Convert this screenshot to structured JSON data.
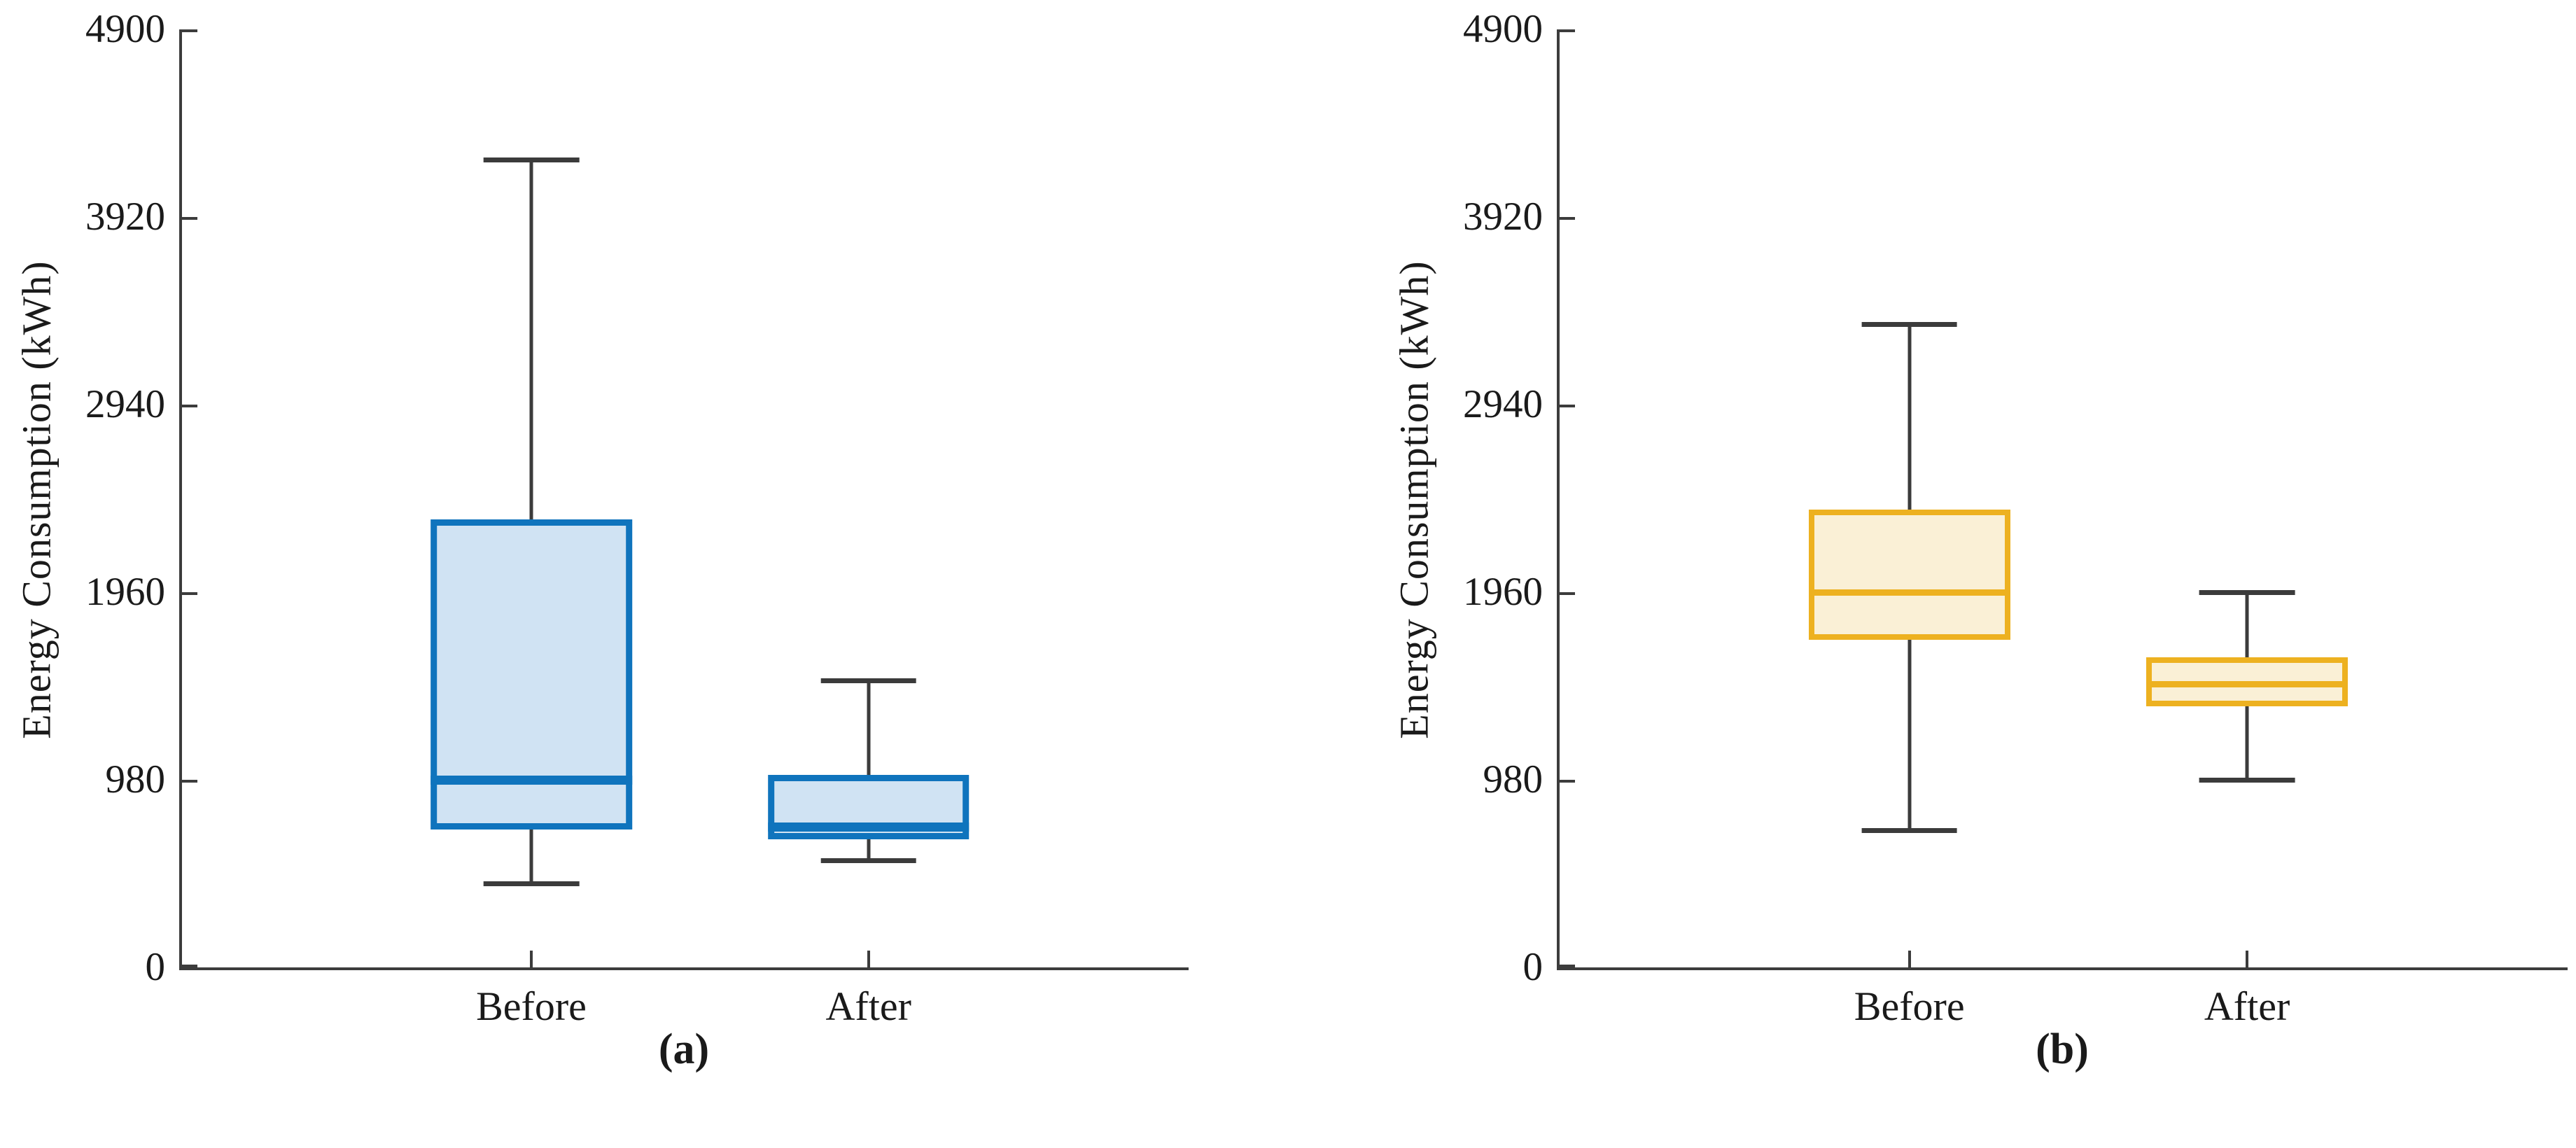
{
  "chart_data": [
    {
      "type": "boxplot",
      "title": "(a)",
      "ylabel": "Energy Consumption (kWh)",
      "xlabel": "",
      "categories": [
        "Before",
        "After"
      ],
      "yticks": [
        0,
        980,
        1960,
        2940,
        3920,
        4900
      ],
      "ylim": [
        0,
        4900
      ],
      "grid": false,
      "legend": "none",
      "colors": {
        "box_edge": "#0f74bd",
        "box_fill": "#d0e3f3",
        "whisker": "#3b3b3b",
        "axis": "#3c3c3c"
      },
      "series": [
        {
          "name": "Before",
          "whisker_low": 440,
          "q1": 720,
          "median": 980,
          "q3": 2340,
          "whisker_high": 4220
        },
        {
          "name": "After",
          "whisker_low": 560,
          "q1": 670,
          "median": 735,
          "q3": 1005,
          "whisker_high": 1500
        }
      ]
    },
    {
      "type": "boxplot",
      "title": "(b)",
      "ylabel": "Energy Consumption (kWh)",
      "xlabel": "",
      "categories": [
        "Before",
        "After"
      ],
      "yticks": [
        0,
        980,
        1960,
        2940,
        3920,
        4900
      ],
      "ylim": [
        0,
        4900
      ],
      "grid": false,
      "legend": "none",
      "colors": {
        "box_edge": "#edb120",
        "box_fill": "#faf0d6",
        "whisker": "#3b3b3b",
        "axis": "#3c3c3c"
      },
      "series": [
        {
          "name": "Before",
          "whisker_low": 715,
          "q1": 1710,
          "median": 1960,
          "q3": 2390,
          "whisker_high": 3360
        },
        {
          "name": "After",
          "whisker_low": 980,
          "q1": 1365,
          "median": 1480,
          "q3": 1620,
          "whisker_high": 1960
        }
      ]
    }
  ]
}
